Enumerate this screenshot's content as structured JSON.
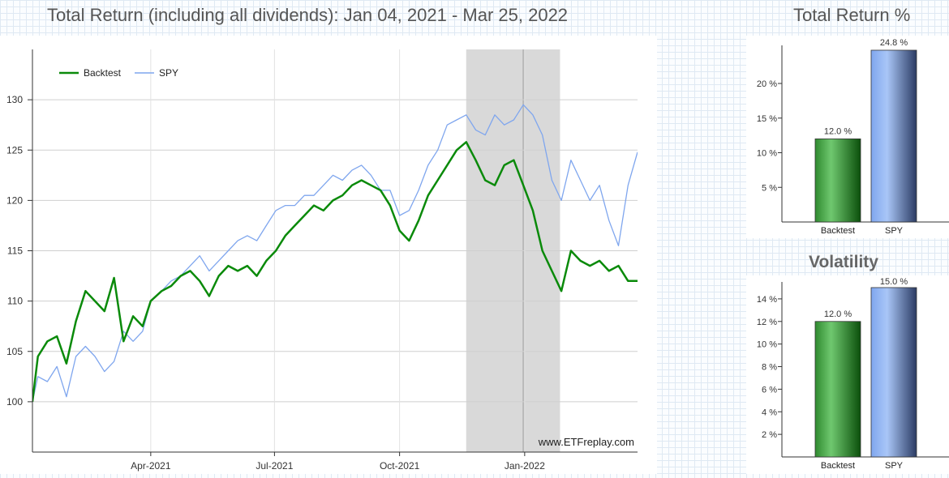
{
  "header": {
    "title": "Total Return (including all dividends): Jan 04, 2021 - Mar 25, 2022",
    "return_title": "Total Return %",
    "volatility_title": "Volatility"
  },
  "watermark": "www.ETFreplay.com",
  "colors": {
    "backtest": "#0a8a0a",
    "spy": "#7fa6ee",
    "shade": "#d9d9d9"
  },
  "chart_data": [
    {
      "type": "line",
      "x_start": "2021-01-04",
      "x_end": "2022-03-25",
      "xtick_labels": [
        "Apr-2021",
        "Jul-2021",
        "Oct-2021",
        "Jan-2022"
      ],
      "xtick_dates": [
        "2021-04-01",
        "2021-07-01",
        "2021-10-01",
        "2022-01-01"
      ],
      "ylim": [
        95,
        135
      ],
      "yticks": [
        100,
        105,
        110,
        115,
        120,
        125,
        130
      ],
      "ytick_labels": [
        "100",
        "105",
        "110",
        "115",
        "120",
        "125",
        "130"
      ],
      "grid": true,
      "legend": "top-left",
      "shaded_region": [
        "2021-11-19",
        "2022-01-27"
      ],
      "vertical_line": "2021-12-31",
      "series": [
        {
          "name": "Backtest",
          "dates": [
            "2021-01-04",
            "2021-01-08",
            "2021-01-15",
            "2021-01-22",
            "2021-01-29",
            "2021-02-05",
            "2021-02-12",
            "2021-02-19",
            "2021-02-26",
            "2021-03-05",
            "2021-03-12",
            "2021-03-19",
            "2021-03-26",
            "2021-04-01",
            "2021-04-09",
            "2021-04-16",
            "2021-04-23",
            "2021-04-30",
            "2021-05-07",
            "2021-05-14",
            "2021-05-21",
            "2021-05-28",
            "2021-06-04",
            "2021-06-11",
            "2021-06-18",
            "2021-06-25",
            "2021-07-02",
            "2021-07-09",
            "2021-07-16",
            "2021-07-23",
            "2021-07-30",
            "2021-08-06",
            "2021-08-13",
            "2021-08-20",
            "2021-08-27",
            "2021-09-03",
            "2021-09-10",
            "2021-09-17",
            "2021-09-24",
            "2021-10-01",
            "2021-10-08",
            "2021-10-15",
            "2021-10-22",
            "2021-10-29",
            "2021-11-05",
            "2021-11-12",
            "2021-11-19",
            "2021-11-26",
            "2021-12-03",
            "2021-12-10",
            "2021-12-17",
            "2021-12-24",
            "2021-12-31",
            "2022-01-07",
            "2022-01-14",
            "2022-01-21",
            "2022-01-28",
            "2022-02-04",
            "2022-02-11",
            "2022-02-18",
            "2022-02-25",
            "2022-03-04",
            "2022-03-11",
            "2022-03-18",
            "2022-03-25"
          ],
          "values": [
            100,
            104.5,
            106,
            106.5,
            103.8,
            108,
            111,
            110,
            109,
            112.3,
            106,
            108.5,
            107.5,
            110,
            111,
            111.5,
            112.5,
            113,
            112,
            110.5,
            112.5,
            113.5,
            113,
            113.5,
            112.5,
            114,
            115,
            116.5,
            117.5,
            118.5,
            119.5,
            119,
            120,
            120.5,
            121.5,
            122,
            121.5,
            121,
            119.5,
            117,
            116,
            118,
            120.5,
            122,
            123.5,
            125,
            125.8,
            124,
            122,
            121.5,
            123.5,
            124,
            121.5,
            119,
            115,
            113,
            111,
            115,
            114,
            113.5,
            114,
            113,
            113.5,
            112,
            112
          ]
        },
        {
          "name": "SPY",
          "dates": [
            "2021-01-04",
            "2021-01-08",
            "2021-01-15",
            "2021-01-22",
            "2021-01-29",
            "2021-02-05",
            "2021-02-12",
            "2021-02-19",
            "2021-02-26",
            "2021-03-05",
            "2021-03-12",
            "2021-03-19",
            "2021-03-26",
            "2021-04-01",
            "2021-04-09",
            "2021-04-16",
            "2021-04-23",
            "2021-04-30",
            "2021-05-07",
            "2021-05-14",
            "2021-05-21",
            "2021-05-28",
            "2021-06-04",
            "2021-06-11",
            "2021-06-18",
            "2021-06-25",
            "2021-07-02",
            "2021-07-09",
            "2021-07-16",
            "2021-07-23",
            "2021-07-30",
            "2021-08-06",
            "2021-08-13",
            "2021-08-20",
            "2021-08-27",
            "2021-09-03",
            "2021-09-10",
            "2021-09-17",
            "2021-09-24",
            "2021-10-01",
            "2021-10-08",
            "2021-10-15",
            "2021-10-22",
            "2021-10-29",
            "2021-11-05",
            "2021-11-12",
            "2021-11-19",
            "2021-11-26",
            "2021-12-03",
            "2021-12-10",
            "2021-12-17",
            "2021-12-24",
            "2021-12-31",
            "2022-01-07",
            "2022-01-14",
            "2022-01-21",
            "2022-01-28",
            "2022-02-04",
            "2022-02-11",
            "2022-02-18",
            "2022-02-25",
            "2022-03-04",
            "2022-03-11",
            "2022-03-18",
            "2022-03-25"
          ],
          "values": [
            100,
            102.5,
            102,
            103.5,
            100.5,
            104.5,
            105.5,
            104.5,
            103,
            104,
            107,
            106,
            107,
            110,
            111,
            112,
            112.5,
            113.5,
            114.5,
            113,
            114,
            115,
            116,
            116.5,
            116,
            117.5,
            119,
            119.5,
            119.5,
            120.5,
            120.5,
            121.5,
            122.5,
            122,
            123,
            123.5,
            122.5,
            121,
            121,
            118.5,
            119,
            121,
            123.5,
            125,
            127.5,
            128,
            128.5,
            127,
            126.5,
            128.5,
            127.5,
            128,
            129.5,
            128.5,
            126.5,
            122,
            120,
            124,
            122,
            120,
            121.5,
            118,
            115.5,
            121.5,
            124.8
          ]
        }
      ]
    },
    {
      "type": "bar",
      "title": "Total Return %",
      "categories": [
        "Backtest",
        "SPY"
      ],
      "values": [
        12.0,
        24.8
      ],
      "value_labels": [
        "12.0 %",
        "24.8 %"
      ],
      "ylim": [
        0,
        25.5
      ],
      "yticks": [
        5,
        10,
        15,
        20
      ],
      "ytick_labels": [
        "5 %",
        "10 %",
        "15 %",
        "20 %"
      ]
    },
    {
      "type": "bar",
      "title": "Volatility",
      "categories": [
        "Backtest",
        "SPY"
      ],
      "values": [
        12.0,
        15.0
      ],
      "value_labels": [
        "12.0 %",
        "15.0 %"
      ],
      "ylim": [
        0,
        15.5
      ],
      "yticks": [
        2,
        4,
        6,
        8,
        10,
        12,
        14
      ],
      "ytick_labels": [
        "2 %",
        "4 %",
        "6 %",
        "8 %",
        "10 %",
        "12 %",
        "14 %"
      ]
    }
  ]
}
